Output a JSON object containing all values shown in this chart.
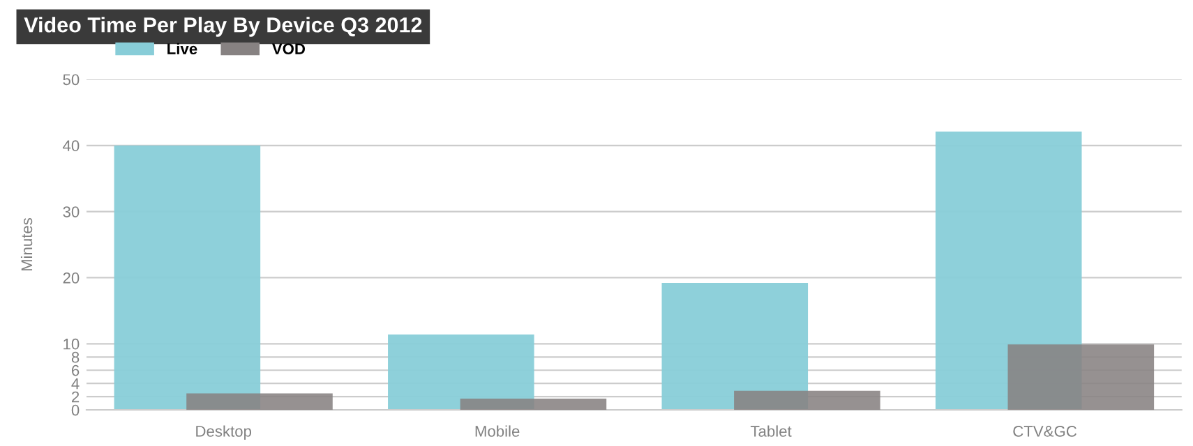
{
  "chart_data": {
    "type": "bar",
    "title": "Video Time Per Play By Device Q3 2012",
    "ylabel": "Minutes",
    "categories": [
      "Desktop",
      "Mobile",
      "Tablet",
      "CTV&GC"
    ],
    "series": [
      {
        "name": "Live",
        "color": "#88cdd8",
        "values": [
          40,
          11.4,
          19.2,
          42.1
        ]
      },
      {
        "name": "VOD",
        "color": "#878282",
        "values": [
          2.5,
          1.7,
          2.9,
          9.9
        ]
      }
    ],
    "ylim": [
      0,
      50
    ],
    "yticks": [
      0,
      2,
      4,
      6,
      8,
      10,
      20,
      30,
      40,
      50
    ],
    "grid": "y",
    "legend": "top left"
  }
}
